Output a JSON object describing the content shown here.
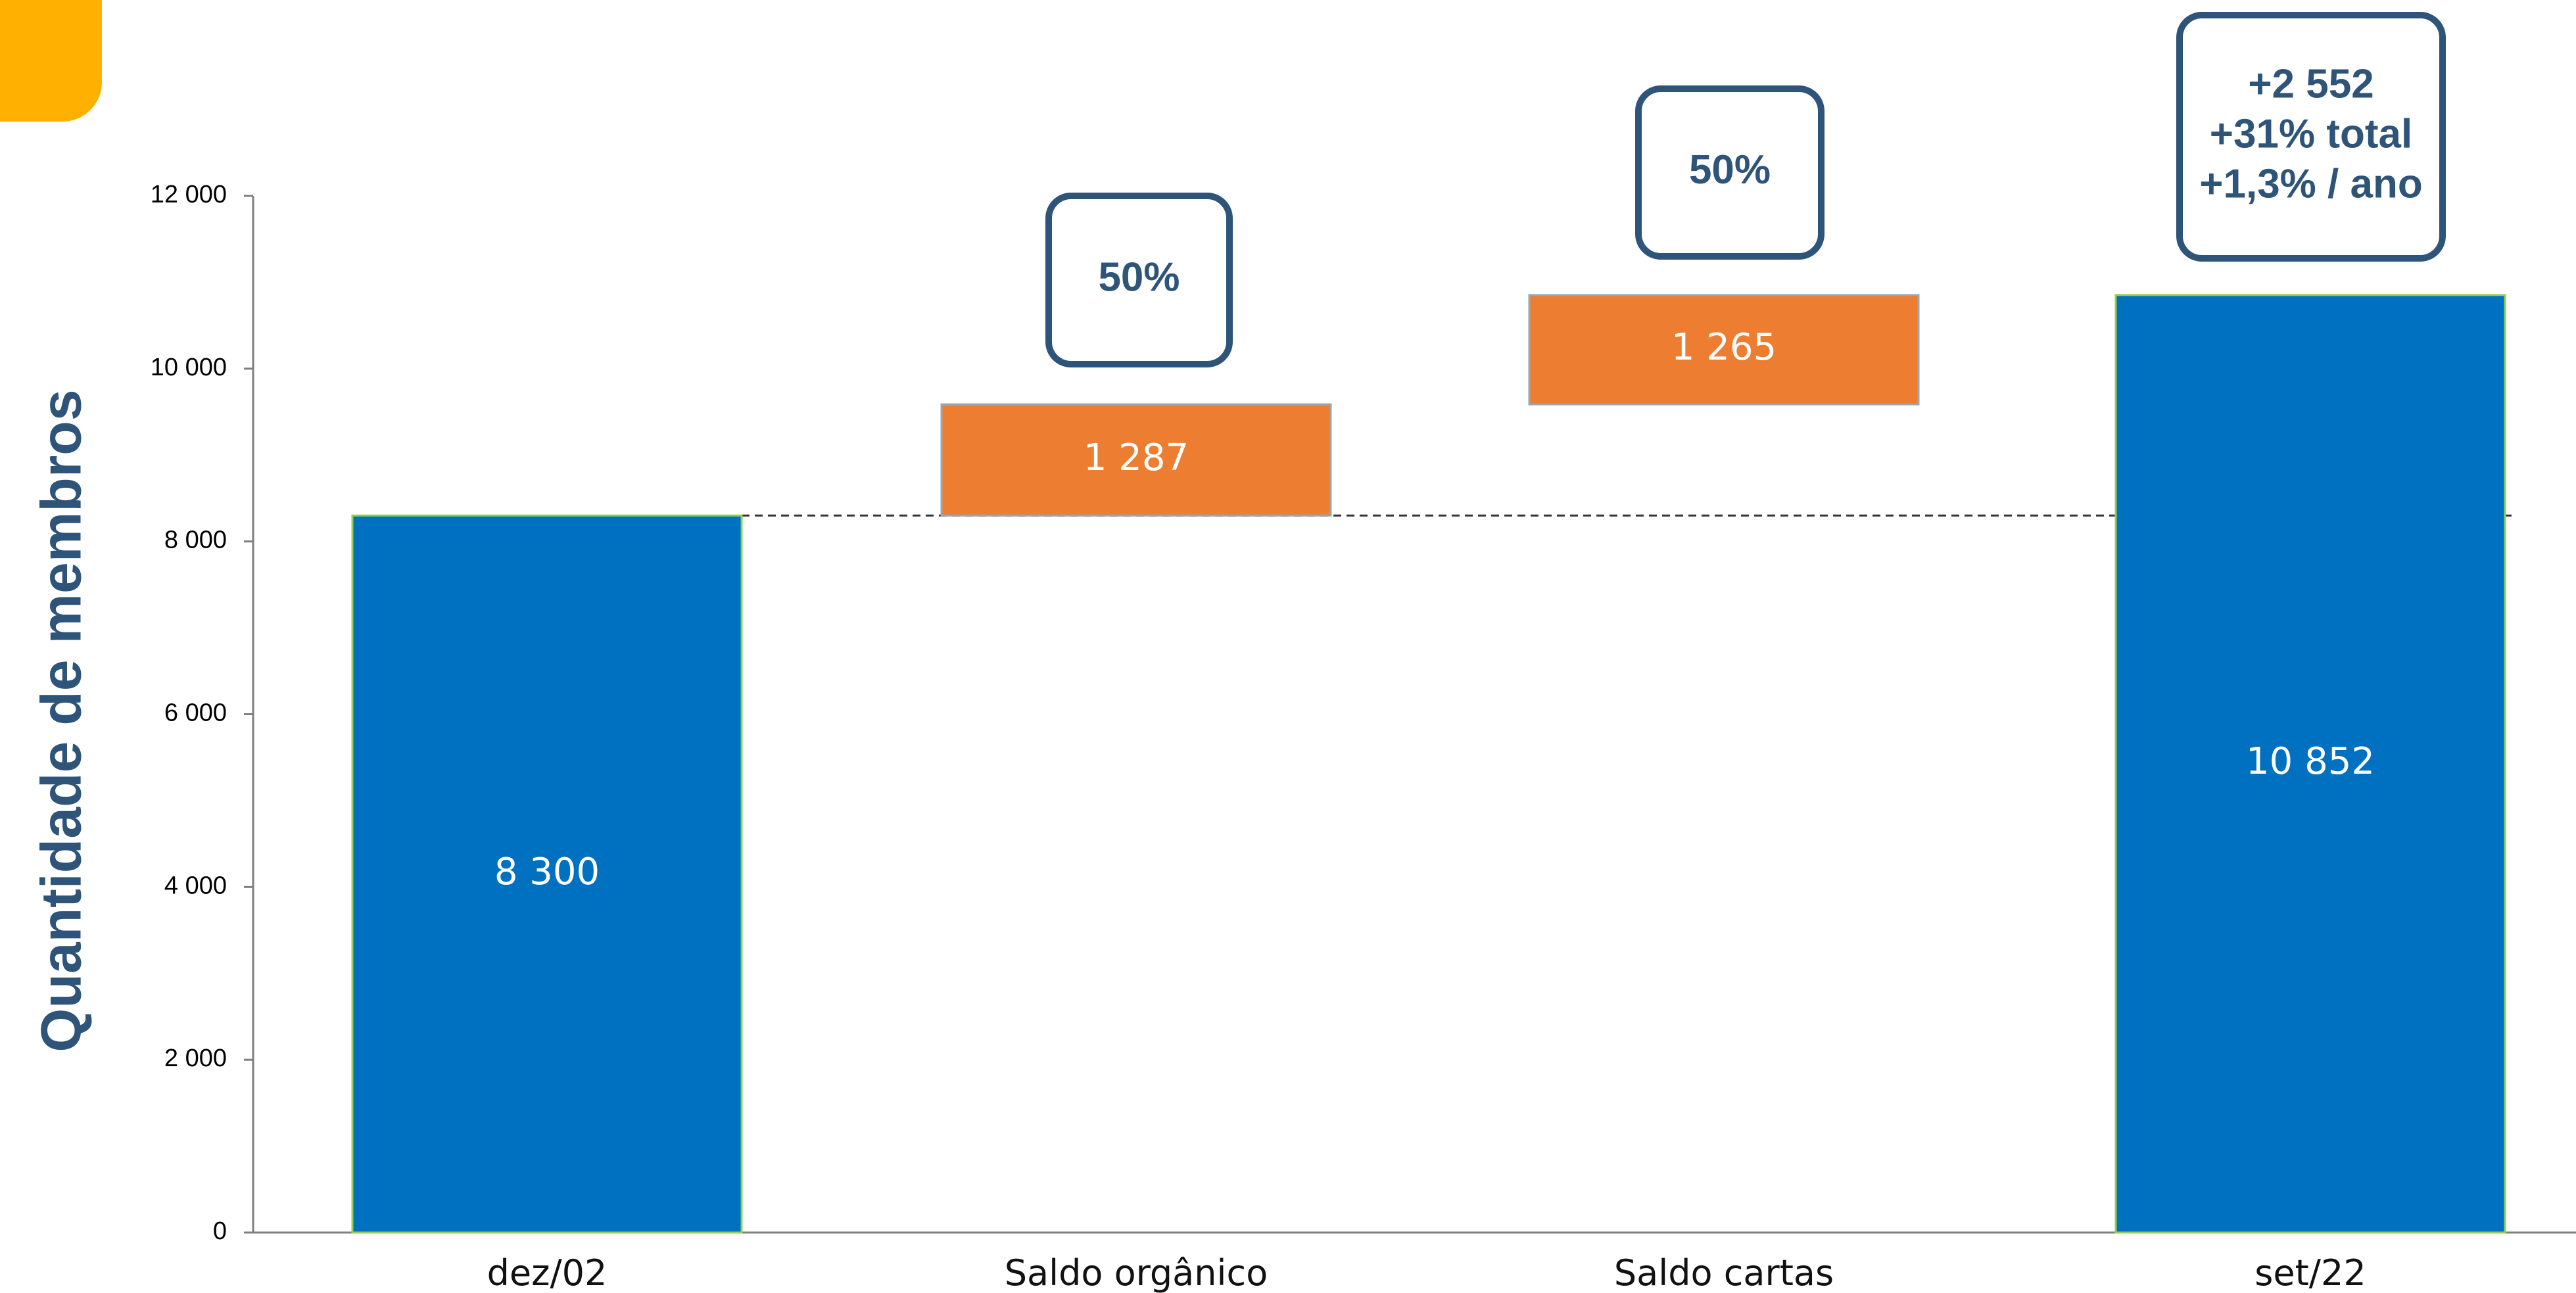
{
  "chart_data": {
    "type": "bar",
    "subtype": "waterfall",
    "ylabel": "Quantidade de membros",
    "ylim": [
      0,
      12000
    ],
    "yticks": [
      0,
      2000,
      4000,
      6000,
      8000,
      10000,
      12000
    ],
    "ytick_labels": [
      "0",
      "2 000",
      "4 000",
      "6 000",
      "8 000",
      "10 000",
      "12 000"
    ],
    "categories": [
      "dez/02",
      "Saldo orgânico",
      "Saldo cartas",
      "set/22"
    ],
    "bars": [
      {
        "kind": "total",
        "base": 0,
        "value": 8300,
        "label": "8 300",
        "color": "#0070C0"
      },
      {
        "kind": "delta",
        "base": 8300,
        "value": 1287,
        "label": "1 287",
        "color": "#ED7D31"
      },
      {
        "kind": "delta",
        "base": 9587,
        "value": 1265,
        "label": "1 265",
        "color": "#ED7D31"
      },
      {
        "kind": "total",
        "base": 0,
        "value": 10852,
        "label": "10 852",
        "color": "#0070C0"
      }
    ],
    "reference_line": {
      "value": 8300,
      "style": "dashed"
    },
    "annotations": [
      {
        "category_index": 1,
        "lines": [
          "50%"
        ]
      },
      {
        "category_index": 2,
        "lines": [
          "50%"
        ]
      },
      {
        "category_index": 3,
        "lines": [
          "+2 552",
          "+31% total",
          "+1,3% / ano"
        ]
      }
    ],
    "grid": false,
    "legend": "none",
    "colors": {
      "total": "#0070C0",
      "delta": "#ED7D31",
      "callout": "#2E5579",
      "accent": "#FFB000"
    }
  }
}
